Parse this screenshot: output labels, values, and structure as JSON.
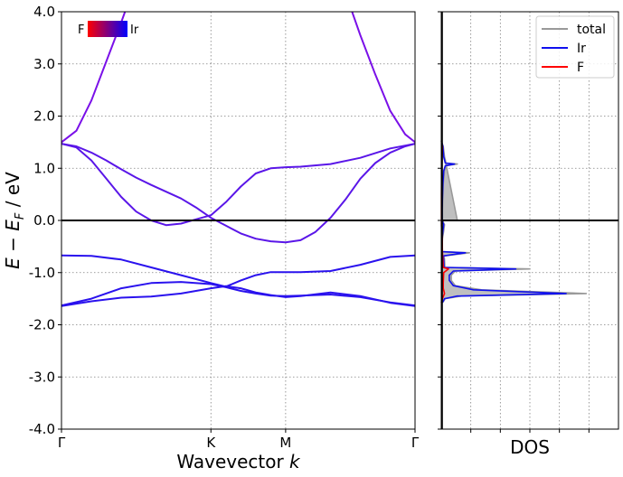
{
  "chart_data": [
    {
      "type": "line",
      "panel": "band-structure",
      "xlabel_prefix": "Wavevector",
      "xlabel_var": "k",
      "ylabel": "E − E_F / eV",
      "ylim": [
        -4.0,
        4.0
      ],
      "yticks": [
        "-4.0",
        "-3.0",
        "-2.0",
        "-1.0",
        "0.0",
        "1.0",
        "2.0",
        "3.0",
        "4.0"
      ],
      "xticks": [
        "Γ",
        "K",
        "M",
        "Γ"
      ],
      "xtick_positions": [
        0,
        1,
        1.5,
        2.366
      ],
      "grid": true,
      "fermi_level": 0.0,
      "colorbar": {
        "left_label": "F",
        "right_label": "Ir",
        "left_color": "#ff0000",
        "right_color": "#0000ff",
        "placement": "top-left"
      },
      "series": [
        {
          "color": "#7a10e8",
          "points": [
            [
              0,
              1.5
            ],
            [
              0.1,
              1.72
            ],
            [
              0.2,
              2.3
            ],
            [
              0.3,
              3.05
            ],
            [
              0.4,
              3.8
            ],
            [
              0.45,
              4.2
            ]
          ]
        },
        {
          "color": "#7a10e8",
          "points": [
            [
              1.92,
              4.2
            ],
            [
              2.0,
              3.55
            ],
            [
              2.1,
              2.8
            ],
            [
              2.2,
              2.1
            ],
            [
              2.3,
              1.65
            ],
            [
              2.366,
              1.5
            ]
          ]
        },
        {
          "color": "#5a16e8",
          "points": [
            [
              0,
              1.47
            ],
            [
              0.1,
              1.4
            ],
            [
              0.2,
              1.15
            ],
            [
              0.3,
              0.8
            ],
            [
              0.4,
              0.45
            ],
            [
              0.5,
              0.17
            ],
            [
              0.6,
              0.0
            ],
            [
              0.7,
              -0.09
            ],
            [
              0.8,
              -0.06
            ],
            [
              0.9,
              0.02
            ],
            [
              1.0,
              0.1
            ],
            [
              1.1,
              0.35
            ],
            [
              1.2,
              0.65
            ],
            [
              1.3,
              0.9
            ],
            [
              1.4,
              1.0
            ],
            [
              1.5,
              1.02
            ],
            [
              1.6,
              1.03
            ],
            [
              1.8,
              1.08
            ],
            [
              2.0,
              1.2
            ],
            [
              2.2,
              1.38
            ],
            [
              2.366,
              1.47
            ]
          ]
        },
        {
          "color": "#5a16e8",
          "points": [
            [
              0,
              1.47
            ],
            [
              0.1,
              1.42
            ],
            [
              0.2,
              1.3
            ],
            [
              0.3,
              1.15
            ],
            [
              0.4,
              0.98
            ],
            [
              0.5,
              0.82
            ],
            [
              0.6,
              0.68
            ],
            [
              0.7,
              0.55
            ],
            [
              0.8,
              0.42
            ],
            [
              0.9,
              0.25
            ],
            [
              1.0,
              0.05
            ],
            [
              1.1,
              -0.1
            ],
            [
              1.2,
              -0.25
            ],
            [
              1.3,
              -0.35
            ],
            [
              1.4,
              -0.4
            ],
            [
              1.5,
              -0.42
            ],
            [
              1.6,
              -0.38
            ],
            [
              1.7,
              -0.22
            ],
            [
              1.8,
              0.05
            ],
            [
              1.9,
              0.4
            ],
            [
              2.0,
              0.8
            ],
            [
              2.1,
              1.1
            ],
            [
              2.2,
              1.3
            ],
            [
              2.3,
              1.42
            ],
            [
              2.366,
              1.47
            ]
          ]
        },
        {
          "color": "#2a12ee",
          "points": [
            [
              0,
              -0.67
            ],
            [
              0.2,
              -0.68
            ],
            [
              0.4,
              -0.75
            ],
            [
              0.6,
              -0.9
            ],
            [
              0.8,
              -1.05
            ],
            [
              1.0,
              -1.2
            ],
            [
              1.1,
              -1.27
            ],
            [
              1.2,
              -1.15
            ],
            [
              1.3,
              -1.05
            ],
            [
              1.4,
              -0.99
            ],
            [
              1.5,
              -0.99
            ],
            [
              1.6,
              -0.99
            ],
            [
              1.8,
              -0.97
            ],
            [
              2.0,
              -0.85
            ],
            [
              2.2,
              -0.7
            ],
            [
              2.366,
              -0.67
            ]
          ]
        },
        {
          "color": "#2a12ee",
          "points": [
            [
              0,
              -1.63
            ],
            [
              0.2,
              -1.5
            ],
            [
              0.4,
              -1.3
            ],
            [
              0.6,
              -1.2
            ],
            [
              0.8,
              -1.18
            ],
            [
              1.0,
              -1.22
            ],
            [
              1.1,
              -1.28
            ],
            [
              1.2,
              -1.35
            ],
            [
              1.3,
              -1.4
            ],
            [
              1.4,
              -1.44
            ],
            [
              1.5,
              -1.45
            ],
            [
              1.6,
              -1.44
            ],
            [
              1.8,
              -1.42
            ],
            [
              2.0,
              -1.47
            ],
            [
              2.2,
              -1.57
            ],
            [
              2.366,
              -1.63
            ]
          ]
        },
        {
          "color": "#2a12ee",
          "points": [
            [
              0,
              -1.64
            ],
            [
              0.2,
              -1.55
            ],
            [
              0.4,
              -1.48
            ],
            [
              0.6,
              -1.46
            ],
            [
              0.8,
              -1.4
            ],
            [
              1.0,
              -1.3
            ],
            [
              1.1,
              -1.26
            ],
            [
              1.2,
              -1.3
            ],
            [
              1.3,
              -1.38
            ],
            [
              1.4,
              -1.43
            ],
            [
              1.5,
              -1.47
            ],
            [
              1.6,
              -1.45
            ],
            [
              1.8,
              -1.38
            ],
            [
              2.0,
              -1.45
            ],
            [
              2.2,
              -1.58
            ],
            [
              2.366,
              -1.64
            ]
          ]
        }
      ]
    },
    {
      "type": "area",
      "panel": "dos",
      "xlabel": "DOS",
      "ylim": [
        -4.0,
        4.0
      ],
      "grid": true,
      "legend": {
        "placement": "top-right",
        "entries": [
          {
            "label": "total",
            "color": "#999999"
          },
          {
            "label": "Ir",
            "color": "#1010ee"
          },
          {
            "label": "F",
            "color": "#ff0000"
          }
        ]
      },
      "series": [
        {
          "name": "total",
          "color": "#999999",
          "fill": "#bfbfbf",
          "points": [
            [
              4,
              0
            ],
            [
              0.02,
              1.52
            ],
            [
              0.5,
              1.42
            ],
            [
              0.8,
              1.22
            ],
            [
              1.2,
              1.1
            ],
            [
              4,
              1.08
            ],
            [
              1.2,
              1.05
            ],
            [
              0.8,
              0.95
            ],
            [
              0.5,
              0.7
            ],
            [
              0.3,
              0.2
            ],
            [
              0.3,
              0
            ],
            [
              0.8,
              -0.08
            ],
            [
              0.6,
              -0.2
            ],
            [
              0.3,
              -0.35
            ],
            [
              0.2,
              -0.6
            ],
            [
              7,
              -0.62
            ],
            [
              0.7,
              -0.68
            ],
            [
              0.8,
              -0.75
            ],
            [
              0.9,
              -0.9
            ],
            [
              22,
              -0.93
            ],
            [
              3.5,
              -0.97
            ],
            [
              2.5,
              -1.05
            ],
            [
              2.5,
              -1.15
            ],
            [
              3.5,
              -1.25
            ],
            [
              10,
              -1.33
            ],
            [
              36,
              -1.4
            ],
            [
              5,
              -1.45
            ],
            [
              1.0,
              -1.5
            ],
            [
              0.5,
              -1.56
            ],
            [
              0,
              -1.58
            ]
          ]
        },
        {
          "name": "Ir",
          "color": "#1010ee",
          "fill": "none",
          "points": [
            [
              0.05,
              1.52
            ],
            [
              0.4,
              1.42
            ],
            [
              0.6,
              1.22
            ],
            [
              1.0,
              1.1
            ],
            [
              3.3,
              1.08
            ],
            [
              1.0,
              1.05
            ],
            [
              0.6,
              0.95
            ],
            [
              0.4,
              0.7
            ],
            [
              0.2,
              0.2
            ],
            [
              0.2,
              0
            ],
            [
              0.6,
              -0.08
            ],
            [
              0.4,
              -0.2
            ],
            [
              0.2,
              -0.35
            ],
            [
              0.15,
              -0.6
            ],
            [
              6,
              -0.62
            ],
            [
              0.5,
              -0.68
            ],
            [
              0.6,
              -0.75
            ],
            [
              0.7,
              -0.9
            ],
            [
              18.5,
              -0.93
            ],
            [
              3,
              -0.97
            ],
            [
              2,
              -1.05
            ],
            [
              2,
              -1.15
            ],
            [
              3,
              -1.25
            ],
            [
              8,
              -1.33
            ],
            [
              31,
              -1.4
            ],
            [
              4,
              -1.45
            ],
            [
              0.8,
              -1.5
            ],
            [
              0.4,
              -1.56
            ],
            [
              0,
              -1.58
            ]
          ]
        },
        {
          "name": "F",
          "color": "#ff0000",
          "fill": "none",
          "points": [
            [
              0.05,
              1.52
            ],
            [
              0.3,
              1.4
            ],
            [
              0.2,
              1.2
            ],
            [
              0.1,
              0.9
            ],
            [
              0.05,
              0.5
            ],
            [
              0.05,
              -0.1
            ],
            [
              0.2,
              -0.3
            ],
            [
              0.3,
              -0.6
            ],
            [
              0.5,
              -0.9
            ],
            [
              1.8,
              -0.93
            ],
            [
              0.6,
              -1.0
            ],
            [
              0.5,
              -1.2
            ],
            [
              0.5,
              -1.3
            ],
            [
              0.8,
              -1.4
            ],
            [
              0.3,
              -1.5
            ],
            [
              0,
              -1.58
            ]
          ]
        }
      ],
      "xlim": [
        0,
        44
      ]
    }
  ]
}
